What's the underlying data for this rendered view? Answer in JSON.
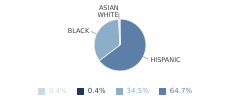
{
  "chart_data": {
    "type": "pie",
    "categories": [
      "64.7%",
      "34.5%",
      "0.4%",
      "0.4%"
    ],
    "values": [
      64.7,
      34.5,
      0.4,
      0.4
    ],
    "colors": [
      "#5b7fa6",
      "#8daec8",
      "#c8dce8",
      "#1a3a5c"
    ],
    "annotations": [
      "HISPANIC",
      "BLACK",
      "ASIAN\nWHITE"
    ],
    "legend": "bottom"
  }
}
